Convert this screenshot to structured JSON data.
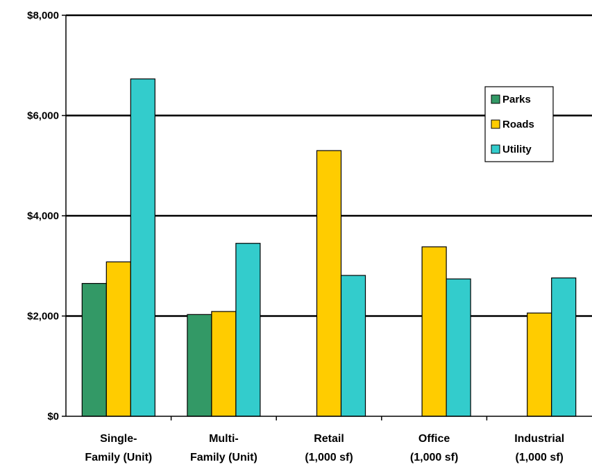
{
  "chart_data": {
    "type": "bar",
    "title": "",
    "xlabel": "",
    "ylabel": "",
    "categories": [
      [
        "Single-",
        "Family (Unit)"
      ],
      [
        "Multi-",
        "Family (Unit)"
      ],
      [
        "Retail",
        "(1,000 sf)"
      ],
      [
        "Office",
        "(1,000 sf)"
      ],
      [
        "Industrial",
        "(1,000 sf)"
      ]
    ],
    "series": [
      {
        "name": "Parks",
        "color": "#339966",
        "values": [
          2650,
          2030,
          null,
          null,
          null
        ]
      },
      {
        "name": "Roads",
        "color": "#ffcc00",
        "values": [
          3080,
          2090,
          5300,
          3380,
          2060
        ]
      },
      {
        "name": "Utility",
        "color": "#33cccc",
        "values": [
          6730,
          3450,
          2810,
          2740,
          2760
        ]
      }
    ],
    "ylim": [
      0,
      8000
    ],
    "yticks": [
      0,
      2000,
      4000,
      6000,
      8000
    ],
    "ytick_labels": [
      "$0",
      "$2,000",
      "$4,000",
      "$6,000",
      "$8,000"
    ],
    "grid": true,
    "legend_position": "top-right"
  }
}
